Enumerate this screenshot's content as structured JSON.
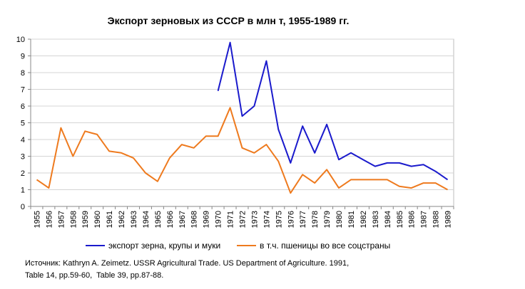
{
  "chart_data": {
    "type": "line",
    "title": "Экспорт зерновых из СССР в млн т, 1955-1989 гг.",
    "xlabel": "",
    "ylabel": "",
    "ylim": [
      0,
      10
    ],
    "yticks": [
      "0",
      "1",
      "2",
      "3",
      "4",
      "5",
      "6",
      "7",
      "8",
      "9",
      "10"
    ],
    "categories": [
      "1955",
      "1956",
      "1957",
      "1958",
      "1959",
      "1960",
      "1961",
      "1962",
      "1963",
      "1964",
      "1965",
      "1966",
      "1967",
      "1968",
      "1969",
      "1970",
      "1971",
      "1972",
      "1973",
      "1974",
      "1975",
      "1976",
      "1977",
      "1978",
      "1979",
      "1980",
      "1981",
      "1982",
      "1983",
      "1984",
      "1985",
      "1986",
      "1987",
      "1988",
      "1989"
    ],
    "series": [
      {
        "name": "экспорт зерна, крупы и муки",
        "color": "#1a1acc",
        "values": [
          null,
          null,
          null,
          null,
          null,
          null,
          null,
          null,
          null,
          null,
          null,
          null,
          null,
          null,
          null,
          6.9,
          9.8,
          5.4,
          6.0,
          8.7,
          4.6,
          2.6,
          4.8,
          3.2,
          4.9,
          2.8,
          3.2,
          2.8,
          2.4,
          2.6,
          2.6,
          2.4,
          2.5,
          2.1,
          1.6
        ]
      },
      {
        "name": "в т.ч. пшеницы во все соцстраны",
        "color": "#ee7a1e",
        "values": [
          1.6,
          1.1,
          4.7,
          3.0,
          4.5,
          4.3,
          3.3,
          3.2,
          2.9,
          2.0,
          1.5,
          2.9,
          3.7,
          3.5,
          4.2,
          4.2,
          5.9,
          3.5,
          3.2,
          3.7,
          2.7,
          0.8,
          1.9,
          1.4,
          2.2,
          1.1,
          1.6,
          1.6,
          1.6,
          1.6,
          1.2,
          1.1,
          1.4,
          1.4,
          1.0
        ]
      }
    ],
    "grid": true,
    "legend": "bottom"
  },
  "source": {
    "line1": "Источник: Kathryn A. Zeimetz. USSR Agricultural Trade. US Department of Agriculture. 1991,",
    "line2": "Table 14, pp.59-60,  Table 39, pp.87-88."
  }
}
